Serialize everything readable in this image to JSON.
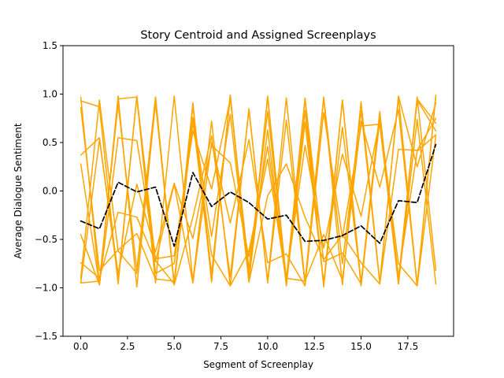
{
  "chart_data": {
    "type": "line",
    "title": "Story Centroid and Assigned Screenplays",
    "xlabel": "Segment of Screenplay",
    "ylabel": "Average Dialogue Sentiment",
    "xlim": [
      -0.95,
      19.95
    ],
    "ylim": [
      -1.5,
      1.5
    ],
    "x_ticks": [
      0.0,
      2.5,
      5.0,
      7.5,
      10.0,
      12.5,
      15.0,
      17.5
    ],
    "x_tick_labels": [
      "0.0",
      "2.5",
      "5.0",
      "7.5",
      "10.0",
      "12.5",
      "15.0",
      "17.5"
    ],
    "y_ticks": [
      -1.5,
      -1.0,
      -0.5,
      0.0,
      0.5,
      1.0,
      1.5
    ],
    "y_tick_labels": [
      "−1.5",
      "−1.0",
      "−0.5",
      "0.0",
      "0.5",
      "1.0",
      "1.5"
    ],
    "grid": false,
    "x": [
      0,
      1,
      2,
      3,
      4,
      5,
      6,
      7,
      8,
      9,
      10,
      11,
      12,
      13,
      14,
      15,
      16,
      17,
      18,
      19
    ],
    "series": [
      {
        "color": "#000000",
        "style": "dashed",
        "values": [
          -0.31,
          -0.39,
          0.09,
          -0.01,
          0.04,
          -0.57,
          0.19,
          -0.16,
          -0.01,
          -0.12,
          -0.29,
          -0.25,
          -0.52,
          -0.51,
          -0.46,
          -0.36,
          -0.54,
          -0.1,
          -0.12,
          0.48
        ]
      },
      {
        "color": "#ffa500",
        "values": [
          0.97,
          -0.97,
          0.95,
          0.97,
          -0.95,
          0.98,
          -0.93,
          0.72,
          -0.98,
          0.85,
          -0.95,
          0.73,
          -0.96,
          0.96,
          -0.97,
          0.92,
          -0.94,
          0.97,
          -0.97,
          0.99
        ]
      },
      {
        "color": "#ffa500",
        "values": [
          0.93,
          0.87,
          -0.96,
          0.98,
          -0.72,
          -0.96,
          0.88,
          -0.86,
          0.99,
          -0.94,
          0.98,
          -0.91,
          0.95,
          -0.99,
          0.93,
          -0.95,
          0.82,
          -0.96,
          0.97,
          -0.82
        ]
      },
      {
        "color": "#ffa500",
        "values": [
          -0.9,
          0.94,
          -0.62,
          -0.85,
          0.96,
          -0.97,
          0.91,
          -0.94,
          0.99,
          -0.91,
          0.63,
          -0.97,
          0.71,
          -0.96,
          0.94,
          -0.98,
          0.74,
          -0.95,
          0.95,
          0.7
        ]
      },
      {
        "color": "#ffa500",
        "values": [
          0.37,
          0.55,
          -0.92,
          0.97,
          -0.85,
          -0.75,
          0.74,
          -0.87,
          0.98,
          -0.9,
          0.97,
          -0.98,
          0.83,
          -0.95,
          0.66,
          -0.95,
          0.78,
          -0.92,
          0.94,
          0.62
        ]
      },
      {
        "color": "#ffa500",
        "values": [
          -0.45,
          -0.97,
          0.98,
          -0.99,
          0.91,
          -0.97,
          -0.27,
          0.57,
          -0.89,
          0.84,
          -0.93,
          0.96,
          -0.94,
          0.97,
          -0.75,
          0.83,
          -0.95,
          0.98,
          0.25,
          0.91
        ]
      },
      {
        "color": "#ffa500",
        "values": [
          0.28,
          -0.97,
          0.55,
          0.52,
          -0.7,
          -0.67,
          0.62,
          0.02,
          0.95,
          -0.81,
          0.82,
          -0.9,
          -0.93,
          -0.45,
          -0.92,
          0.72,
          0.04,
          0.84,
          -0.98,
          0.98
        ]
      },
      {
        "color": "#ffa500",
        "values": [
          -0.95,
          -0.93,
          0.9,
          -0.82,
          0.97,
          -0.96,
          0.71,
          -0.66,
          -0.98,
          -0.62,
          0.33,
          -0.93,
          0.96,
          -0.73,
          -0.64,
          -0.96,
          0.74,
          -0.88,
          0.41,
          0.58
        ]
      },
      {
        "color": "#ffa500",
        "values": [
          -0.74,
          -0.9,
          -0.22,
          -0.27,
          -0.73,
          0.07,
          -0.95,
          0.5,
          -0.33,
          0.53,
          -0.74,
          -0.65,
          -0.98,
          0.81,
          -0.48,
          0.67,
          0.69,
          -0.96,
          0.74,
          -0.96
        ]
      },
      {
        "color": "#ffa500",
        "values": [
          0.86,
          -0.82,
          -0.61,
          -0.44,
          -0.91,
          -0.93,
          0.76,
          -0.47,
          0.79,
          -0.94,
          -0.05,
          0.28,
          -0.27,
          -0.71,
          -0.45,
          -0.74,
          -0.96,
          0.43,
          0.42,
          0.75
        ]
      },
      {
        "color": "#ffa500",
        "values": [
          -0.95,
          0.53,
          -0.85,
          0.07,
          -0.63,
          0.08,
          -0.49,
          0.47,
          0.29,
          -0.68,
          0.46,
          -0.91,
          0.47,
          -0.59,
          0.38,
          -0.26,
          0.73,
          -0.75,
          -0.98,
          0.57
        ]
      }
    ]
  }
}
